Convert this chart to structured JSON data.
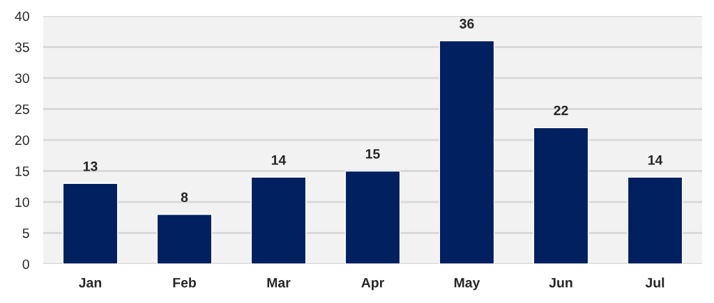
{
  "chart_data": {
    "type": "bar",
    "categories": [
      "Jan",
      "Feb",
      "Mar",
      "Apr",
      "May",
      "Jun",
      "Jul"
    ],
    "values": [
      13,
      8,
      14,
      15,
      36,
      22,
      14
    ],
    "color": "#002060",
    "ylim": [
      0,
      40
    ],
    "yticks": [
      0,
      5,
      10,
      15,
      20,
      25,
      30,
      35,
      40
    ],
    "grid": "y",
    "data_labels": true
  }
}
